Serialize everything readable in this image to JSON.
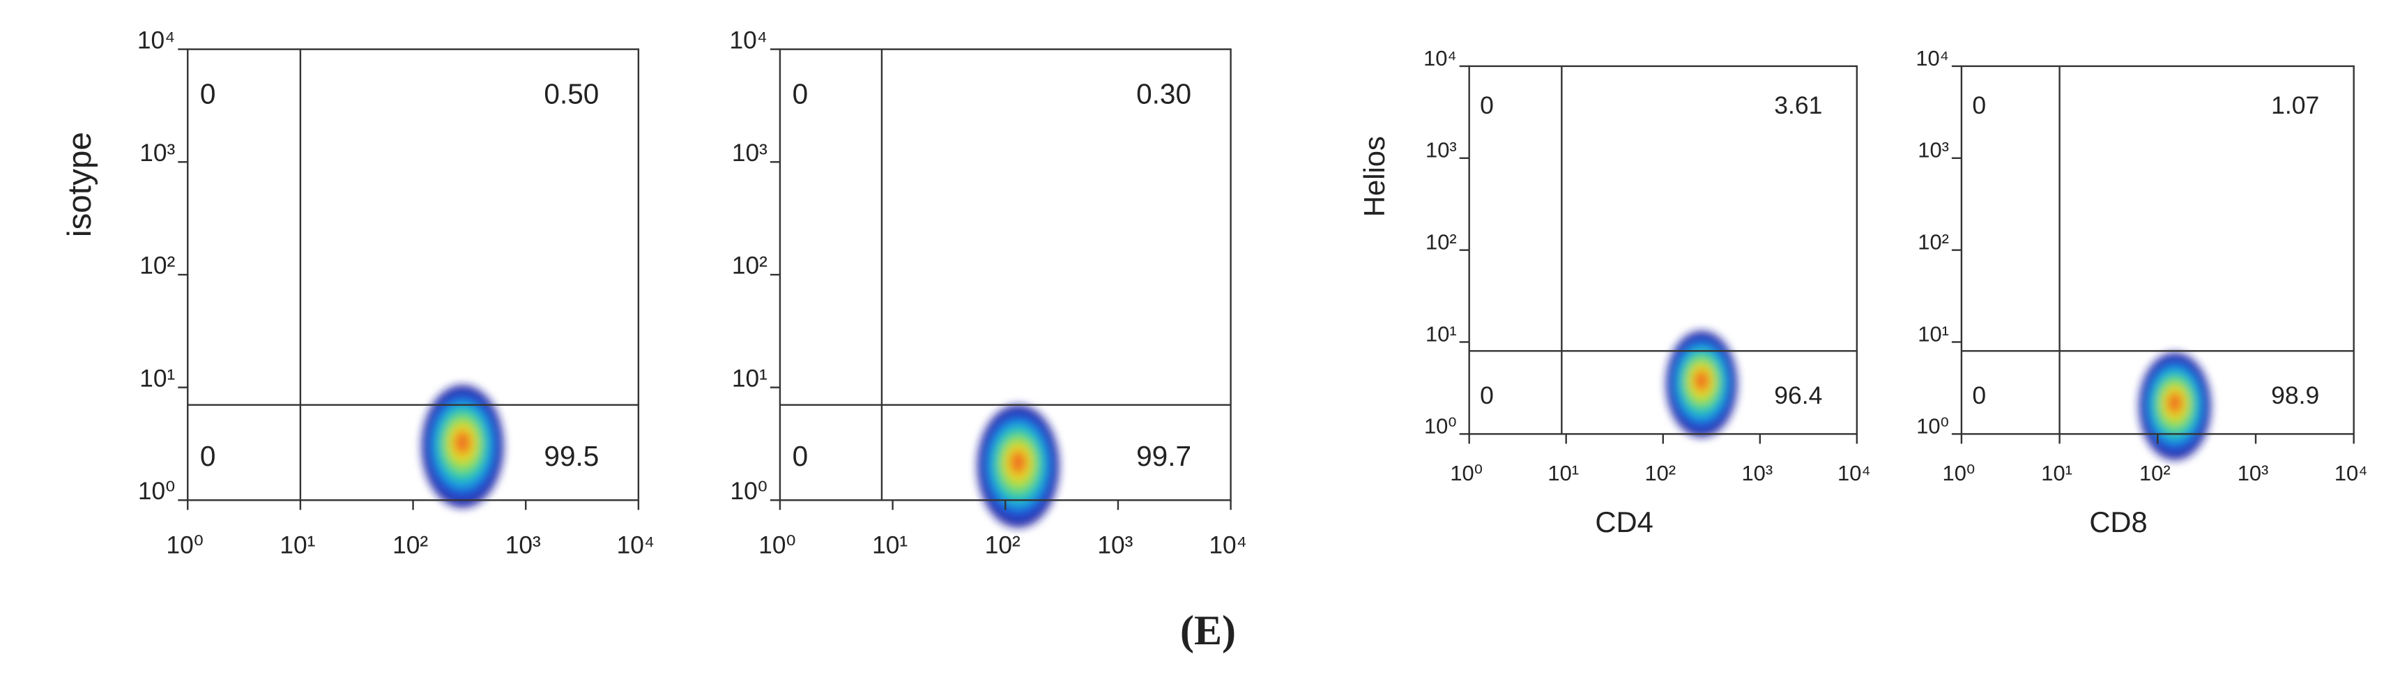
{
  "caption": "(E)",
  "chart_data": [
    {
      "type": "scatter",
      "ylabel": "isotype",
      "log": true,
      "xlim": [
        1,
        10000
      ],
      "ylim": [
        1,
        10000
      ],
      "xticks": [
        {
          "value": 1,
          "label": "10⁰"
        },
        {
          "value": 10,
          "label": "10¹"
        },
        {
          "value": 100,
          "label": "10²"
        },
        {
          "value": 1000,
          "label": "10³"
        },
        {
          "value": 10000,
          "label": "10⁴"
        }
      ],
      "yticks": [
        {
          "value": 1,
          "label": "10⁰"
        },
        {
          "value": 10,
          "label": "10¹"
        },
        {
          "value": 100,
          "label": "10²"
        },
        {
          "value": 1000,
          "label": "10³"
        },
        {
          "value": 10000,
          "label": "10⁴"
        }
      ],
      "gate": {
        "x": 10,
        "y": 7
      },
      "cluster": {
        "x": 275,
        "y": 3
      },
      "values": [
        0,
        0.5,
        0,
        99.5
      ],
      "value_labels": [
        "0",
        "0.50",
        "0",
        "99.5"
      ]
    },
    {
      "type": "scatter",
      "log": true,
      "xlim": [
        1,
        10000
      ],
      "ylim": [
        1,
        10000
      ],
      "xticks": [
        {
          "value": 1,
          "label": "10⁰"
        },
        {
          "value": 10,
          "label": "10¹"
        },
        {
          "value": 100,
          "label": "10²"
        },
        {
          "value": 1000,
          "label": "10³"
        },
        {
          "value": 10000,
          "label": "10⁴"
        }
      ],
      "yticks": [
        {
          "value": 1,
          "label": "10⁰"
        },
        {
          "value": 10,
          "label": "10¹"
        },
        {
          "value": 100,
          "label": "10²"
        },
        {
          "value": 1000,
          "label": "10³"
        },
        {
          "value": 10000,
          "label": "10⁴"
        }
      ],
      "gate": {
        "x": 8,
        "y": 7
      },
      "cluster": {
        "x": 130,
        "y": 2
      },
      "values": [
        0,
        0.3,
        0,
        99.7
      ],
      "value_labels": [
        "0",
        "0.30",
        "0",
        "99.7"
      ]
    },
    {
      "type": "scatter",
      "ylabel": "Helios",
      "xlabel": "CD4",
      "log": true,
      "xlim": [
        1,
        10000
      ],
      "ylim": [
        1,
        10000
      ],
      "xticks": [
        {
          "value": 1,
          "label": "10⁰"
        },
        {
          "value": 10,
          "label": "10¹"
        },
        {
          "value": 100,
          "label": "10²"
        },
        {
          "value": 1000,
          "label": "10³"
        },
        {
          "value": 10000,
          "label": "10⁴"
        }
      ],
      "yticks": [
        {
          "value": 1,
          "label": "10⁰"
        },
        {
          "value": 10,
          "label": "10¹"
        },
        {
          "value": 100,
          "label": "10²"
        },
        {
          "value": 1000,
          "label": "10³"
        },
        {
          "value": 10000,
          "label": "10⁴"
        }
      ],
      "gate": {
        "x": 9,
        "y": 8
      },
      "cluster": {
        "x": 250,
        "y": 3.5
      },
      "values": [
        0,
        3.61,
        0,
        96.4
      ],
      "value_labels": [
        "0",
        "3.61",
        "0",
        "96.4"
      ]
    },
    {
      "type": "scatter",
      "xlabel": "CD8",
      "log": true,
      "xlim": [
        1,
        10000
      ],
      "ylim": [
        1,
        10000
      ],
      "xticks": [
        {
          "value": 1,
          "label": "10⁰"
        },
        {
          "value": 10,
          "label": "10¹"
        },
        {
          "value": 100,
          "label": "10²"
        },
        {
          "value": 1000,
          "label": "10³"
        },
        {
          "value": 10000,
          "label": "10⁴"
        }
      ],
      "yticks": [
        {
          "value": 1,
          "label": "10⁰"
        },
        {
          "value": 10,
          "label": "10¹"
        },
        {
          "value": 100,
          "label": "10²"
        },
        {
          "value": 1000,
          "label": "10³"
        },
        {
          "value": 10000,
          "label": "10⁴"
        }
      ],
      "gate": {
        "x": 10,
        "y": 8
      },
      "cluster": {
        "x": 150,
        "y": 2
      },
      "values": [
        0,
        1.07,
        0,
        98.9
      ],
      "value_labels": [
        "0",
        "1.07",
        "0",
        "98.9"
      ]
    }
  ]
}
